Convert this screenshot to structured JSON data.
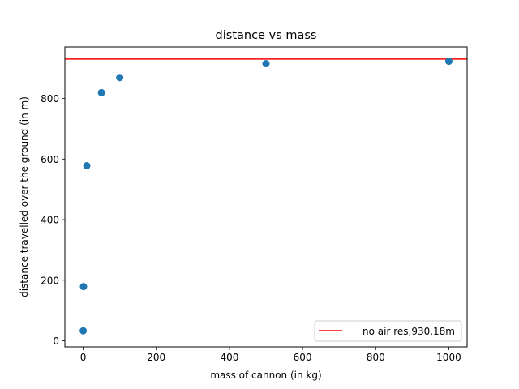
{
  "chart_data": {
    "type": "scatter",
    "title": "distance vs mass",
    "xlabel": "mass of cannon (in kg)",
    "ylabel": "distance travelled over the ground (in m)",
    "xlim": [
      -50,
      1050
    ],
    "ylim": [
      -20,
      970
    ],
    "xticks": [
      0,
      200,
      400,
      600,
      800,
      1000
    ],
    "yticks": [
      0,
      200,
      400,
      600,
      800
    ],
    "grid": false,
    "legend_position": "lower-right",
    "series": [
      {
        "type": "scatter",
        "color": "#1f77b4",
        "x": [
          0.1,
          1,
          10,
          50,
          100,
          500,
          1000
        ],
        "y": [
          33,
          179,
          578,
          819,
          869,
          915,
          923
        ]
      }
    ],
    "reference_lines": [
      {
        "orientation": "horizontal",
        "y": 930.18,
        "color": "#ff0000",
        "label": "no air res,930.18m"
      }
    ]
  }
}
